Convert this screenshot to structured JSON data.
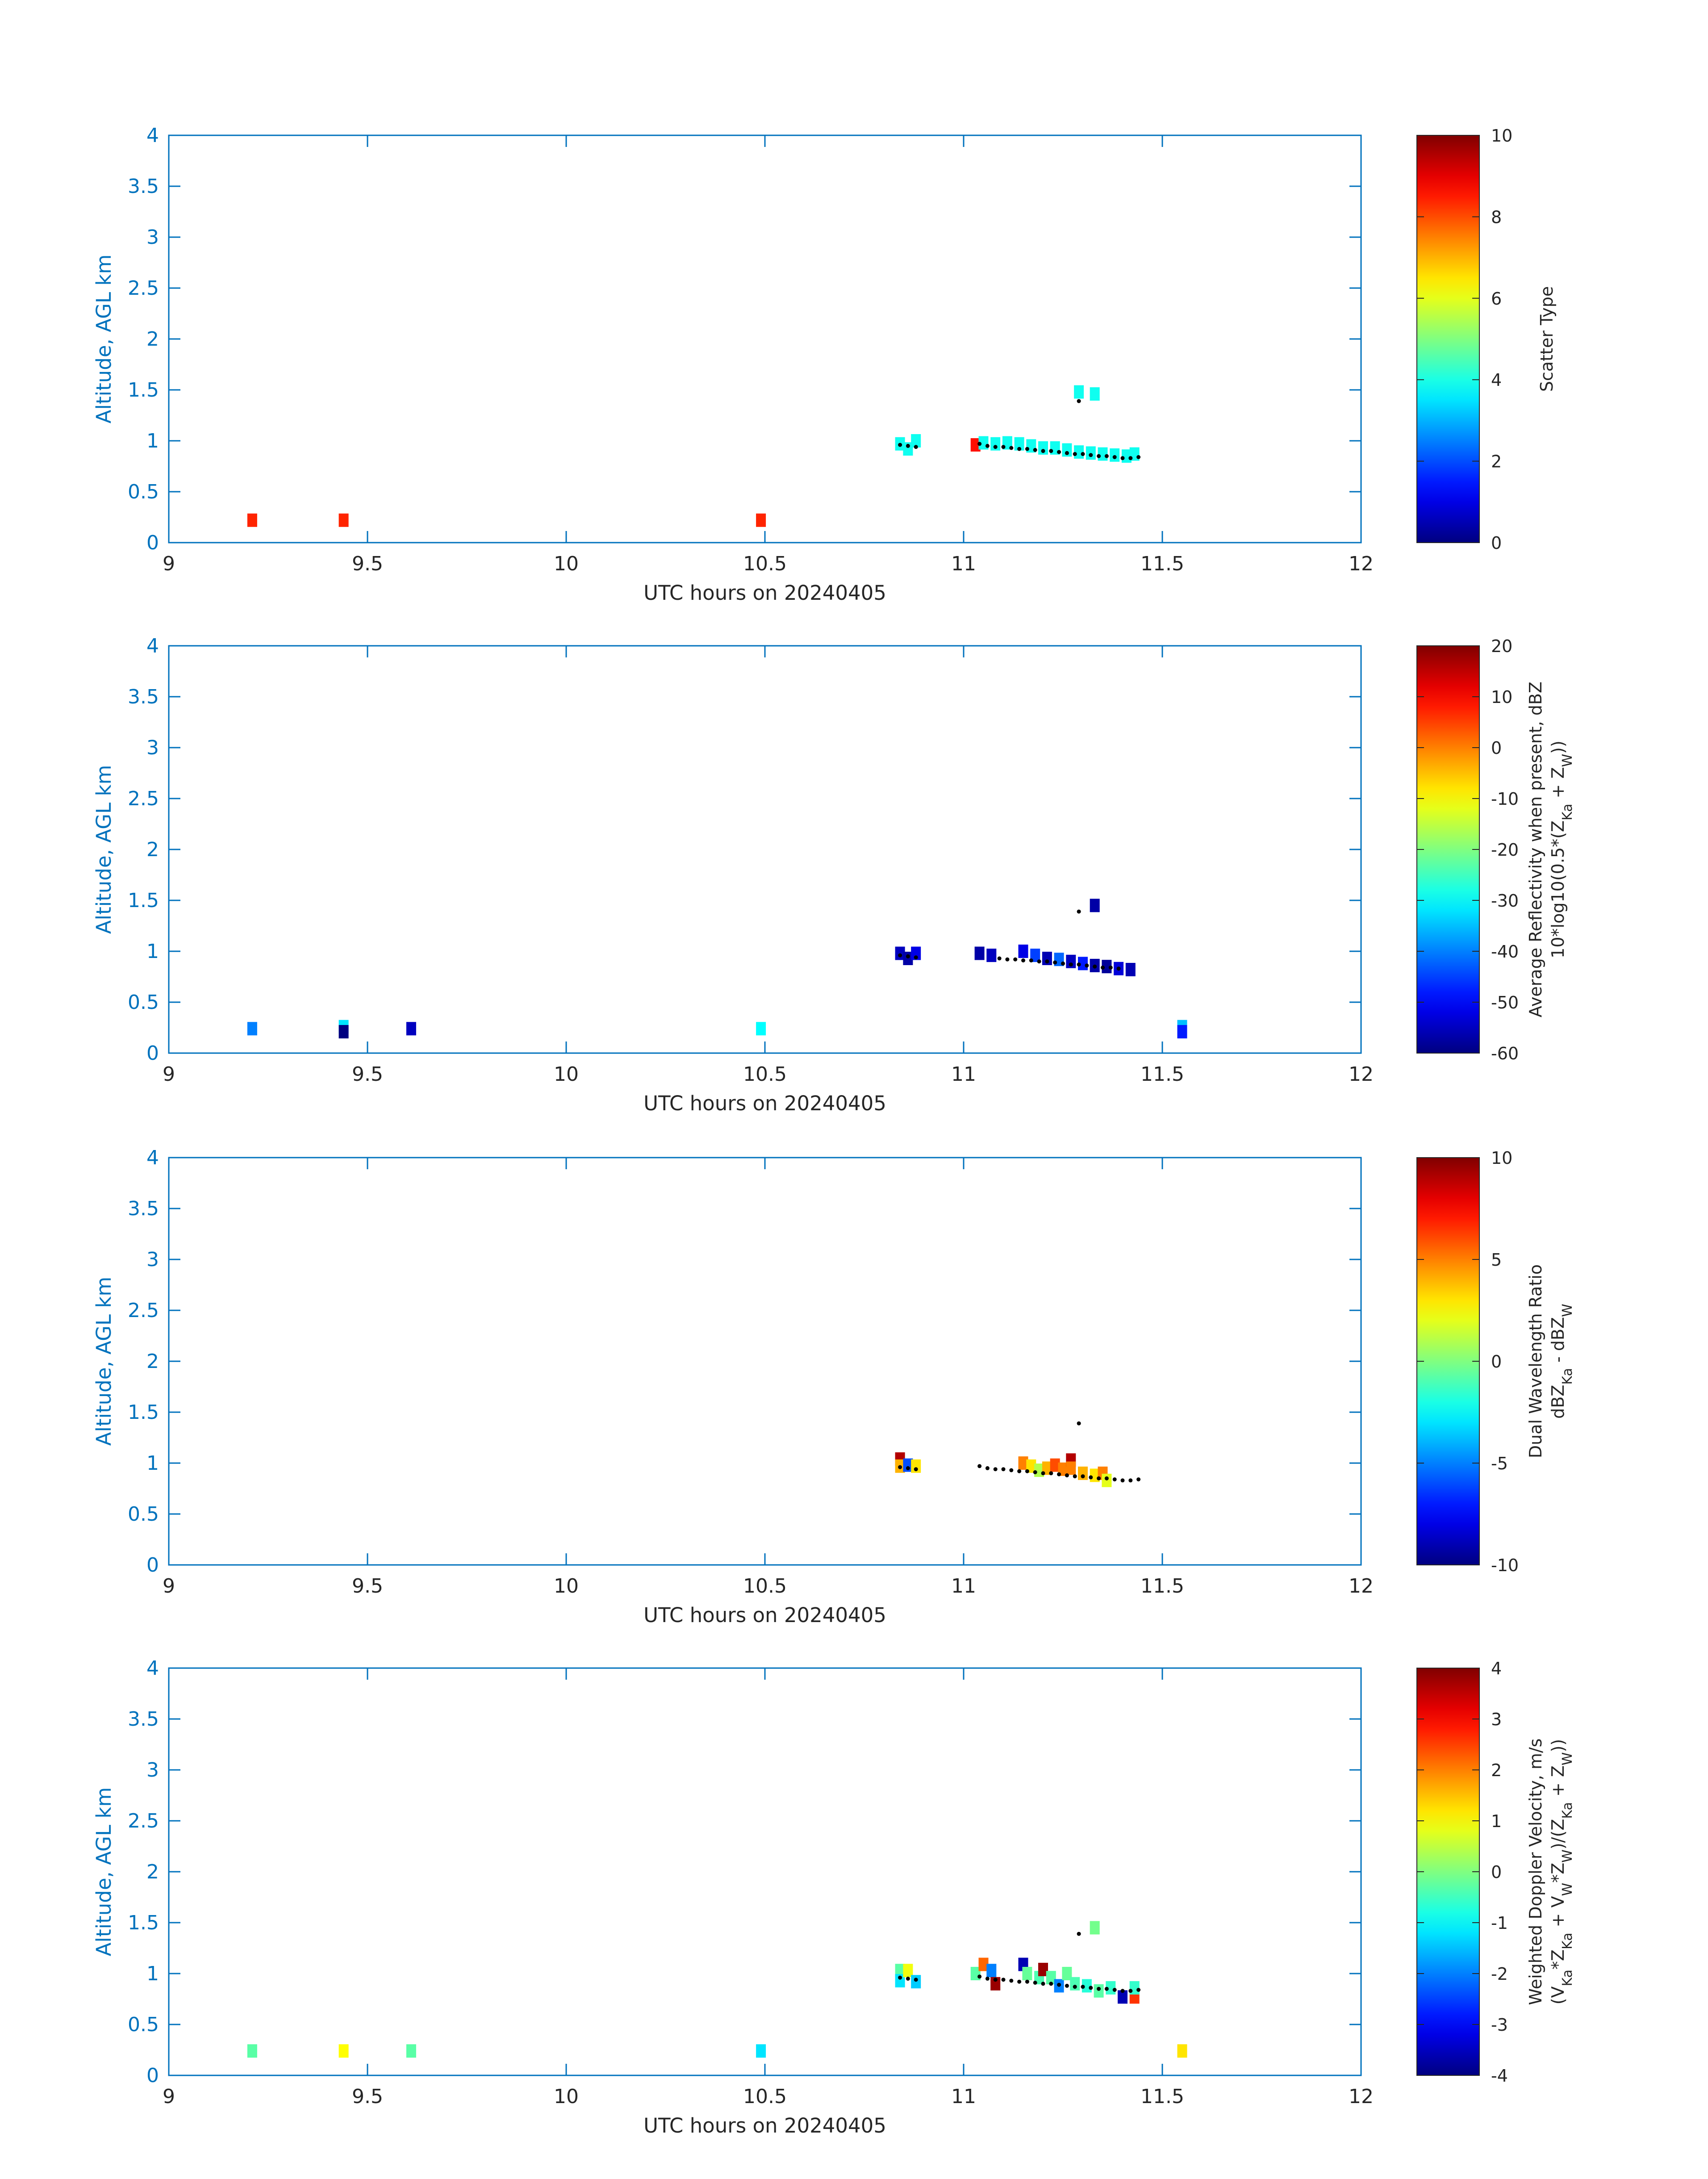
{
  "figure": {
    "background": "#ffffff",
    "axis_color": "#0072bd",
    "text_color": "#262626",
    "track_color": "#000000"
  },
  "chart_data": [
    {
      "type": "heatmap",
      "id": "scatter-type",
      "xlabel": "UTC hours on 20240405",
      "ylabel": "Altitude, AGL km",
      "xlim": [
        9,
        12
      ],
      "ylim": [
        0,
        4
      ],
      "xticks": [
        "9",
        "9.5",
        "10",
        "10.5",
        "11",
        "11.5",
        "12"
      ],
      "yticks": [
        "0",
        "0.5",
        "1",
        "1.5",
        "2",
        "2.5",
        "3",
        "3.5",
        "4"
      ],
      "colorbar": {
        "label_lines": [
          "Scatter Type"
        ],
        "clim": [
          0,
          10
        ],
        "ticks": [
          "0",
          "2",
          "4",
          "6",
          "8",
          "10"
        ]
      },
      "cells": [
        {
          "x": 9.21,
          "y": 0.22,
          "v": 8.4
        },
        {
          "x": 9.44,
          "y": 0.22,
          "v": 8.4
        },
        {
          "x": 10.49,
          "y": 0.22,
          "v": 8.4
        },
        {
          "x": 10.84,
          "y": 0.97,
          "v": 3.9
        },
        {
          "x": 10.86,
          "y": 0.92,
          "v": 3.9
        },
        {
          "x": 10.88,
          "y": 1.0,
          "v": 3.9
        },
        {
          "x": 11.03,
          "y": 0.96,
          "v": 8.6
        },
        {
          "x": 11.05,
          "y": 0.98,
          "v": 3.9
        },
        {
          "x": 11.08,
          "y": 0.97,
          "v": 3.9
        },
        {
          "x": 11.11,
          "y": 0.98,
          "v": 3.9
        },
        {
          "x": 11.14,
          "y": 0.97,
          "v": 3.9
        },
        {
          "x": 11.17,
          "y": 0.95,
          "v": 3.9
        },
        {
          "x": 11.2,
          "y": 0.93,
          "v": 3.9
        },
        {
          "x": 11.23,
          "y": 0.93,
          "v": 3.9
        },
        {
          "x": 11.26,
          "y": 0.91,
          "v": 3.9
        },
        {
          "x": 11.29,
          "y": 0.89,
          "v": 3.9
        },
        {
          "x": 11.32,
          "y": 0.88,
          "v": 3.9
        },
        {
          "x": 11.35,
          "y": 0.87,
          "v": 3.9
        },
        {
          "x": 11.38,
          "y": 0.86,
          "v": 3.9
        },
        {
          "x": 11.41,
          "y": 0.85,
          "v": 3.9
        },
        {
          "x": 11.43,
          "y": 0.87,
          "v": 3.9
        },
        {
          "x": 11.29,
          "y": 1.48,
          "v": 3.9
        },
        {
          "x": 11.33,
          "y": 1.46,
          "v": 3.9
        }
      ],
      "track": [
        {
          "x": 10.84,
          "y": 0.96
        },
        {
          "x": 10.86,
          "y": 0.95
        },
        {
          "x": 10.88,
          "y": 0.94
        },
        {
          "x": 11.04,
          "y": 0.97
        },
        {
          "x": 11.06,
          "y": 0.95
        },
        {
          "x": 11.08,
          "y": 0.94
        },
        {
          "x": 11.1,
          "y": 0.94
        },
        {
          "x": 11.12,
          "y": 0.93
        },
        {
          "x": 11.14,
          "y": 0.92
        },
        {
          "x": 11.16,
          "y": 0.92
        },
        {
          "x": 11.18,
          "y": 0.91
        },
        {
          "x": 11.2,
          "y": 0.9
        },
        {
          "x": 11.22,
          "y": 0.9
        },
        {
          "x": 11.24,
          "y": 0.89
        },
        {
          "x": 11.26,
          "y": 0.88
        },
        {
          "x": 11.28,
          "y": 0.87
        },
        {
          "x": 11.3,
          "y": 0.87
        },
        {
          "x": 11.32,
          "y": 0.86
        },
        {
          "x": 11.34,
          "y": 0.85
        },
        {
          "x": 11.36,
          "y": 0.85
        },
        {
          "x": 11.38,
          "y": 0.84
        },
        {
          "x": 11.4,
          "y": 0.83
        },
        {
          "x": 11.42,
          "y": 0.83
        },
        {
          "x": 11.44,
          "y": 0.84
        },
        {
          "x": 11.29,
          "y": 1.39
        }
      ]
    },
    {
      "type": "heatmap",
      "id": "reflectivity",
      "xlabel": "UTC hours on 20240405",
      "ylabel": "Altitude, AGL km",
      "xlim": [
        9,
        12
      ],
      "ylim": [
        0,
        4
      ],
      "xticks": [
        "9",
        "9.5",
        "10",
        "10.5",
        "11",
        "11.5",
        "12"
      ],
      "yticks": [
        "0",
        "0.5",
        "1",
        "1.5",
        "2",
        "2.5",
        "3",
        "3.5",
        "4"
      ],
      "colorbar": {
        "label_lines": [
          "Average Reflectivity when present, dBZ",
          "10*log10(0.5*(Z_Ka + Z_W))"
        ],
        "clim": [
          -60,
          20
        ],
        "ticks": [
          "-60",
          "-50",
          "-40",
          "-30",
          "-20",
          "-10",
          "0",
          "10",
          "20"
        ]
      },
      "cells": [
        {
          "x": 9.21,
          "y": 0.24,
          "v": -40
        },
        {
          "x": 9.44,
          "y": 0.26,
          "v": -32
        },
        {
          "x": 9.44,
          "y": 0.21,
          "v": -60
        },
        {
          "x": 9.61,
          "y": 0.24,
          "v": -55
        },
        {
          "x": 10.49,
          "y": 0.24,
          "v": -30
        },
        {
          "x": 11.55,
          "y": 0.26,
          "v": -35
        },
        {
          "x": 11.55,
          "y": 0.21,
          "v": -48
        },
        {
          "x": 10.84,
          "y": 0.98,
          "v": -55
        },
        {
          "x": 10.86,
          "y": 0.93,
          "v": -57
        },
        {
          "x": 10.88,
          "y": 0.98,
          "v": -52
        },
        {
          "x": 11.04,
          "y": 0.98,
          "v": -57
        },
        {
          "x": 11.07,
          "y": 0.96,
          "v": -55
        },
        {
          "x": 11.15,
          "y": 1.0,
          "v": -52
        },
        {
          "x": 11.18,
          "y": 0.96,
          "v": -45
        },
        {
          "x": 11.21,
          "y": 0.93,
          "v": -56
        },
        {
          "x": 11.24,
          "y": 0.92,
          "v": -42
        },
        {
          "x": 11.27,
          "y": 0.9,
          "v": -55
        },
        {
          "x": 11.3,
          "y": 0.88,
          "v": -48
        },
        {
          "x": 11.33,
          "y": 0.86,
          "v": -57
        },
        {
          "x": 11.36,
          "y": 0.85,
          "v": -58
        },
        {
          "x": 11.39,
          "y": 0.83,
          "v": -53
        },
        {
          "x": 11.42,
          "y": 0.82,
          "v": -56
        },
        {
          "x": 11.33,
          "y": 1.45,
          "v": -57
        }
      ],
      "track": [
        {
          "x": 10.84,
          "y": 0.96
        },
        {
          "x": 10.86,
          "y": 0.95
        },
        {
          "x": 10.88,
          "y": 0.94
        },
        {
          "x": 11.09,
          "y": 0.93
        },
        {
          "x": 11.11,
          "y": 0.92
        },
        {
          "x": 11.13,
          "y": 0.92
        },
        {
          "x": 11.15,
          "y": 0.91
        },
        {
          "x": 11.17,
          "y": 0.91
        },
        {
          "x": 11.19,
          "y": 0.9
        },
        {
          "x": 11.21,
          "y": 0.9
        },
        {
          "x": 11.23,
          "y": 0.89
        },
        {
          "x": 11.25,
          "y": 0.88
        },
        {
          "x": 11.27,
          "y": 0.87
        },
        {
          "x": 11.29,
          "y": 0.87
        },
        {
          "x": 11.31,
          "y": 0.86
        },
        {
          "x": 11.33,
          "y": 0.85
        },
        {
          "x": 11.35,
          "y": 0.84
        },
        {
          "x": 11.37,
          "y": 0.84
        },
        {
          "x": 11.39,
          "y": 0.83
        },
        {
          "x": 11.29,
          "y": 1.39
        }
      ]
    },
    {
      "type": "heatmap",
      "id": "dwr",
      "xlabel": "UTC hours on 20240405",
      "ylabel": "Altitude, AGL km",
      "xlim": [
        9,
        12
      ],
      "ylim": [
        0,
        4
      ],
      "xticks": [
        "9",
        "9.5",
        "10",
        "10.5",
        "11",
        "11.5",
        "12"
      ],
      "yticks": [
        "0",
        "0.5",
        "1",
        "1.5",
        "2",
        "2.5",
        "3",
        "3.5",
        "4"
      ],
      "colorbar": {
        "label_lines": [
          "Dual Wavelength Ratio",
          "dBZ_Ka - dBZ_W"
        ],
        "clim": [
          -10,
          10
        ],
        "ticks": [
          "-10",
          "-5",
          "0",
          "5",
          "10"
        ]
      },
      "cells": [
        {
          "x": 10.84,
          "y": 1.04,
          "v": 9
        },
        {
          "x": 10.84,
          "y": 0.97,
          "v": 4
        },
        {
          "x": 10.86,
          "y": 0.98,
          "v": -6
        },
        {
          "x": 10.88,
          "y": 0.97,
          "v": 3
        },
        {
          "x": 11.15,
          "y": 1.0,
          "v": 5
        },
        {
          "x": 11.17,
          "y": 0.97,
          "v": 3
        },
        {
          "x": 11.19,
          "y": 0.93,
          "v": 1
        },
        {
          "x": 11.21,
          "y": 0.95,
          "v": 4
        },
        {
          "x": 11.23,
          "y": 0.98,
          "v": 6
        },
        {
          "x": 11.25,
          "y": 0.94,
          "v": 5
        },
        {
          "x": 11.27,
          "y": 1.03,
          "v": 9
        },
        {
          "x": 11.27,
          "y": 0.95,
          "v": 5
        },
        {
          "x": 11.3,
          "y": 0.9,
          "v": 4
        },
        {
          "x": 11.33,
          "y": 0.88,
          "v": 3
        },
        {
          "x": 11.35,
          "y": 0.9,
          "v": 5
        },
        {
          "x": 11.36,
          "y": 0.83,
          "v": 2
        }
      ],
      "track": [
        {
          "x": 10.84,
          "y": 0.96
        },
        {
          "x": 10.86,
          "y": 0.95
        },
        {
          "x": 10.88,
          "y": 0.94
        },
        {
          "x": 11.04,
          "y": 0.97
        },
        {
          "x": 11.06,
          "y": 0.95
        },
        {
          "x": 11.08,
          "y": 0.94
        },
        {
          "x": 11.1,
          "y": 0.94
        },
        {
          "x": 11.12,
          "y": 0.93
        },
        {
          "x": 11.14,
          "y": 0.92
        },
        {
          "x": 11.16,
          "y": 0.92
        },
        {
          "x": 11.18,
          "y": 0.91
        },
        {
          "x": 11.2,
          "y": 0.9
        },
        {
          "x": 11.22,
          "y": 0.9
        },
        {
          "x": 11.24,
          "y": 0.89
        },
        {
          "x": 11.26,
          "y": 0.88
        },
        {
          "x": 11.28,
          "y": 0.87
        },
        {
          "x": 11.3,
          "y": 0.87
        },
        {
          "x": 11.32,
          "y": 0.86
        },
        {
          "x": 11.34,
          "y": 0.85
        },
        {
          "x": 11.36,
          "y": 0.85
        },
        {
          "x": 11.38,
          "y": 0.84
        },
        {
          "x": 11.4,
          "y": 0.83
        },
        {
          "x": 11.42,
          "y": 0.83
        },
        {
          "x": 11.44,
          "y": 0.84
        },
        {
          "x": 11.29,
          "y": 1.39
        }
      ]
    },
    {
      "type": "heatmap",
      "id": "doppler",
      "xlabel": "UTC hours on 20240405",
      "ylabel": "Altitude, AGL km",
      "xlim": [
        9,
        12
      ],
      "ylim": [
        0,
        4
      ],
      "xticks": [
        "9",
        "9.5",
        "10",
        "10.5",
        "11",
        "11.5",
        "12"
      ],
      "yticks": [
        "0",
        "0.5",
        "1",
        "1.5",
        "2",
        "2.5",
        "3",
        "3.5",
        "4"
      ],
      "colorbar": {
        "label_lines": [
          "Weighted Doppler Velocity, m/s",
          "(V_Ka*Z_Ka + V_W*Z_W)/(Z_Ka + Z_W))"
        ],
        "clim": [
          -4,
          4
        ],
        "ticks": [
          "-4",
          "-3",
          "-2",
          "-1",
          "0",
          "1",
          "2",
          "3",
          "4"
        ]
      },
      "cells": [
        {
          "x": 9.21,
          "y": 0.24,
          "v": -0.3
        },
        {
          "x": 9.44,
          "y": 0.24,
          "v": 1.0
        },
        {
          "x": 9.61,
          "y": 0.24,
          "v": -0.3
        },
        {
          "x": 10.49,
          "y": 0.24,
          "v": -1.2
        },
        {
          "x": 11.55,
          "y": 0.24,
          "v": 1.2
        },
        {
          "x": 10.84,
          "y": 1.03,
          "v": -0.3
        },
        {
          "x": 10.84,
          "y": 0.93,
          "v": -1.2
        },
        {
          "x": 10.86,
          "y": 1.03,
          "v": 0.9
        },
        {
          "x": 10.88,
          "y": 0.92,
          "v": -1.4
        },
        {
          "x": 11.03,
          "y": 1.0,
          "v": -0.3
        },
        {
          "x": 11.05,
          "y": 1.09,
          "v": 2.2
        },
        {
          "x": 11.07,
          "y": 1.03,
          "v": -2.0
        },
        {
          "x": 11.08,
          "y": 0.9,
          "v": 3.8
        },
        {
          "x": 11.15,
          "y": 1.09,
          "v": -3.6
        },
        {
          "x": 11.16,
          "y": 1.0,
          "v": -0.2
        },
        {
          "x": 11.19,
          "y": 0.96,
          "v": -0.4
        },
        {
          "x": 11.2,
          "y": 1.04,
          "v": 3.8
        },
        {
          "x": 11.22,
          "y": 0.96,
          "v": -0.3
        },
        {
          "x": 11.24,
          "y": 0.88,
          "v": -2.0
        },
        {
          "x": 11.26,
          "y": 1.0,
          "v": -0.2
        },
        {
          "x": 11.28,
          "y": 0.9,
          "v": -0.4
        },
        {
          "x": 11.31,
          "y": 0.88,
          "v": -0.7
        },
        {
          "x": 11.34,
          "y": 0.83,
          "v": -0.3
        },
        {
          "x": 11.37,
          "y": 0.86,
          "v": -0.6
        },
        {
          "x": 11.4,
          "y": 0.77,
          "v": -3.6
        },
        {
          "x": 11.43,
          "y": 0.77,
          "v": 2.6
        },
        {
          "x": 11.43,
          "y": 0.86,
          "v": -0.6
        },
        {
          "x": 11.33,
          "y": 1.45,
          "v": -0.1
        }
      ],
      "track": [
        {
          "x": 10.84,
          "y": 0.96
        },
        {
          "x": 10.86,
          "y": 0.95
        },
        {
          "x": 10.88,
          "y": 0.94
        },
        {
          "x": 11.04,
          "y": 0.97
        },
        {
          "x": 11.06,
          "y": 0.95
        },
        {
          "x": 11.08,
          "y": 0.94
        },
        {
          "x": 11.1,
          "y": 0.94
        },
        {
          "x": 11.12,
          "y": 0.93
        },
        {
          "x": 11.14,
          "y": 0.92
        },
        {
          "x": 11.16,
          "y": 0.92
        },
        {
          "x": 11.18,
          "y": 0.91
        },
        {
          "x": 11.2,
          "y": 0.9
        },
        {
          "x": 11.22,
          "y": 0.9
        },
        {
          "x": 11.24,
          "y": 0.89
        },
        {
          "x": 11.26,
          "y": 0.88
        },
        {
          "x": 11.28,
          "y": 0.87
        },
        {
          "x": 11.3,
          "y": 0.87
        },
        {
          "x": 11.32,
          "y": 0.86
        },
        {
          "x": 11.34,
          "y": 0.85
        },
        {
          "x": 11.36,
          "y": 0.85
        },
        {
          "x": 11.38,
          "y": 0.84
        },
        {
          "x": 11.4,
          "y": 0.83
        },
        {
          "x": 11.42,
          "y": 0.83
        },
        {
          "x": 11.44,
          "y": 0.84
        },
        {
          "x": 11.29,
          "y": 1.39
        }
      ]
    }
  ]
}
